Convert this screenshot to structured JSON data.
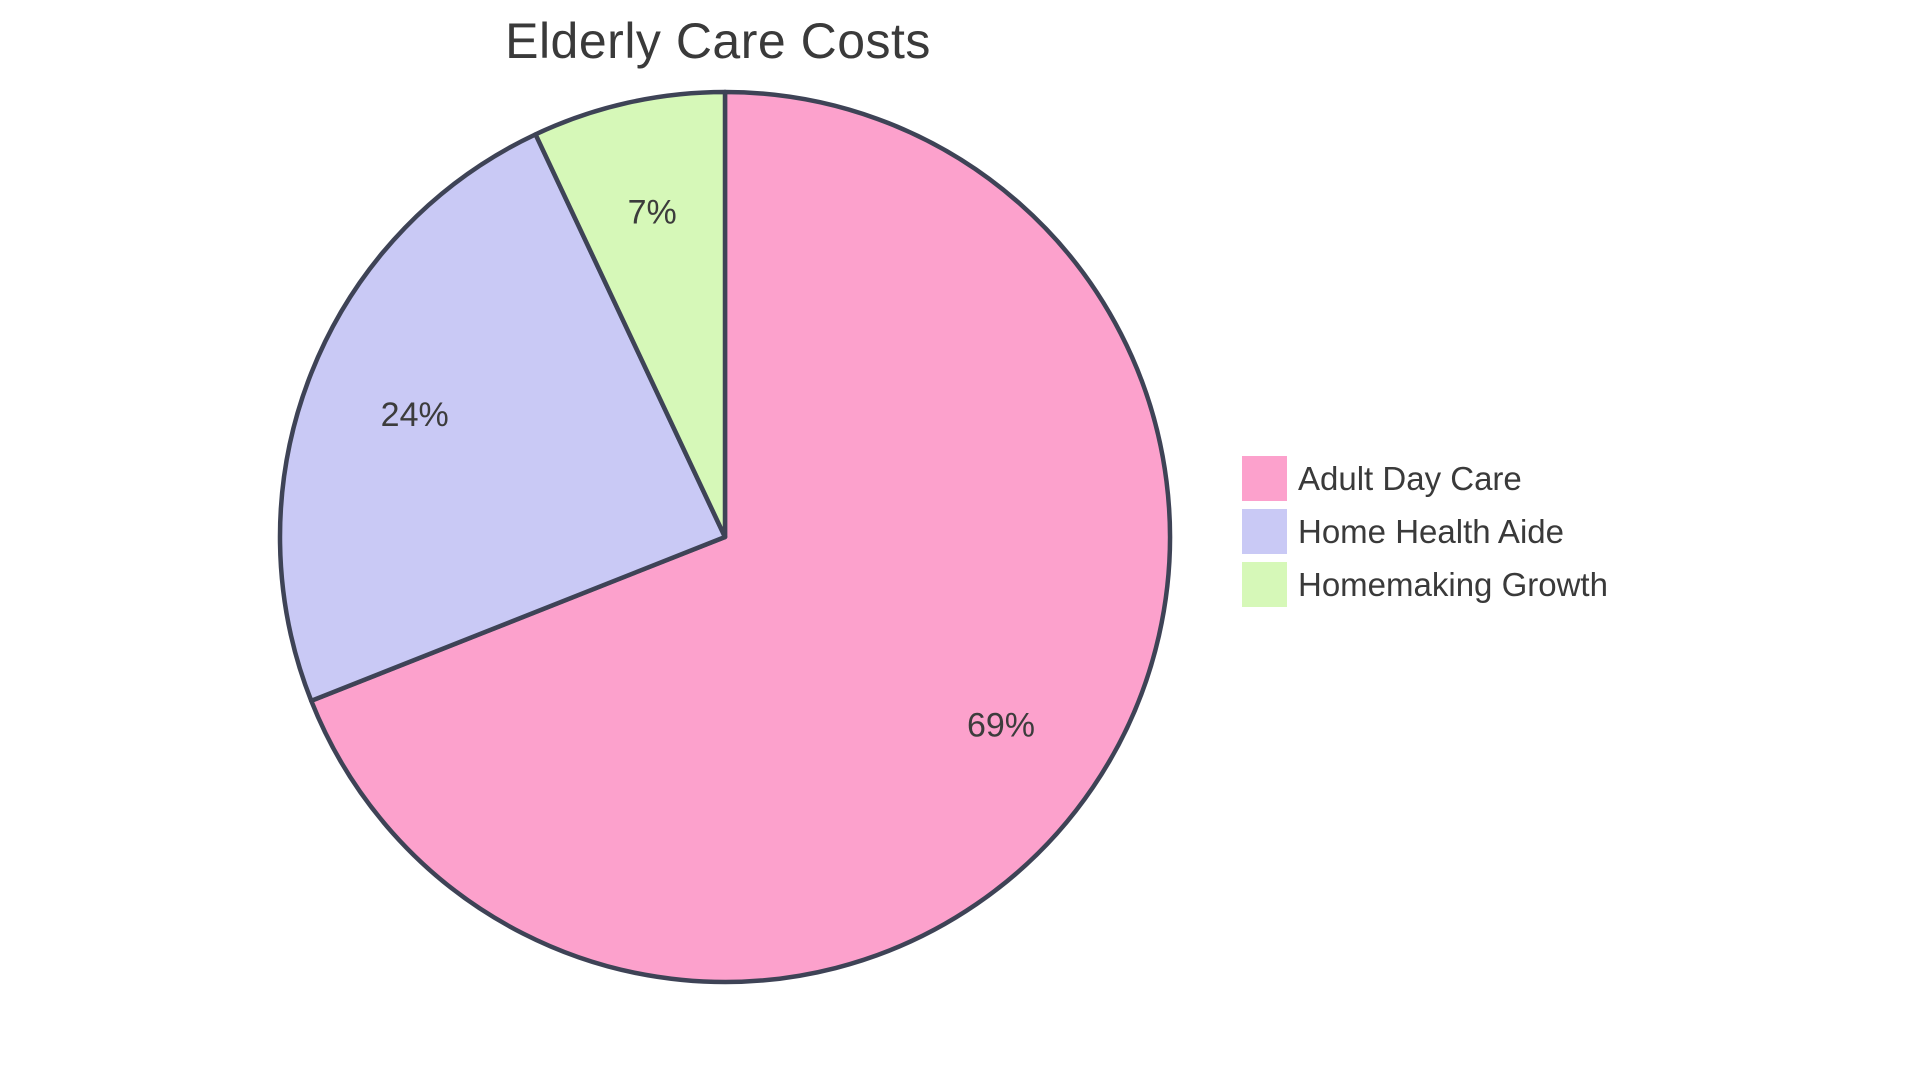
{
  "title": "Elderly Care Costs",
  "colors": {
    "outline": "#3E4356",
    "text": "#3A3A3A",
    "background": "#FFFFFF"
  },
  "chart_data": {
    "type": "pie",
    "title": "Elderly Care Costs",
    "labels": [
      "Adult Day Care",
      "Home Health Aide",
      "Homemaking Growth"
    ],
    "values": [
      69,
      24,
      7
    ],
    "unit": "percent",
    "slice_labels": [
      "69%",
      "24%",
      "7%"
    ],
    "slice_colors": [
      "#FCA1CC",
      "#C9C9F5",
      "#D6F8B8"
    ],
    "start_angle_deg": 0,
    "direction": "clockwise",
    "legend_position": "right",
    "labels_inside": true
  },
  "legend": {
    "items": [
      {
        "label": "Adult Day Care",
        "color": "#FCA1CC"
      },
      {
        "label": "Home Health Aide",
        "color": "#C9C9F5"
      },
      {
        "label": "Homemaking Growth",
        "color": "#D6F8B8"
      }
    ]
  }
}
